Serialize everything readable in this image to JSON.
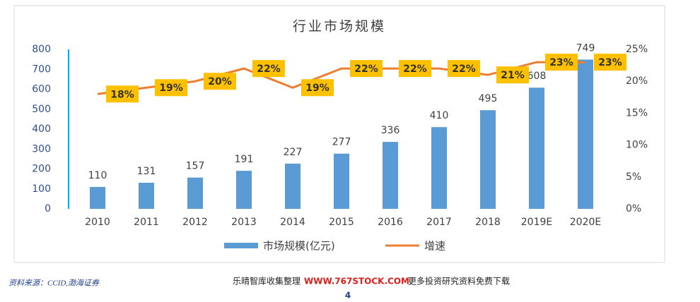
{
  "chart_data": {
    "type": "bar_line",
    "title": "行业市场规模",
    "categories": [
      "2010",
      "2011",
      "2012",
      "2013",
      "2014",
      "2015",
      "2016",
      "2017",
      "2018",
      "2019E",
      "2020E"
    ],
    "series": [
      {
        "name": "市场规模(亿元)",
        "type": "bar",
        "color": "#5b9bd5",
        "values": [
          110,
          131,
          157,
          191,
          227,
          277,
          336,
          410,
          495,
          608,
          749
        ]
      },
      {
        "name": "增速",
        "type": "line",
        "axis": "y2",
        "color": "#ed7d31",
        "values": [
          18,
          19,
          20,
          22,
          19,
          22,
          22,
          22,
          21,
          23,
          23
        ],
        "value_labels": [
          "18%",
          "19%",
          "20%",
          "22%",
          "19%",
          "22%",
          "22%",
          "22%",
          "21%",
          "23%",
          "23%"
        ]
      }
    ],
    "ylim": [
      0,
      800
    ],
    "yticks": [
      0,
      100,
      200,
      300,
      400,
      500,
      600,
      700,
      800
    ],
    "y2lim": [
      0,
      25
    ],
    "y2ticks": [
      {
        "value": 0,
        "label": "0%"
      },
      {
        "value": 5,
        "label": "5%"
      },
      {
        "value": 10,
        "label": "10%"
      },
      {
        "value": 15,
        "label": "15%"
      },
      {
        "value": 20,
        "label": "20%"
      },
      {
        "value": 25,
        "label": "25%"
      }
    ],
    "legend": "bottom"
  },
  "footer": {
    "source": "资料来源：CCID,渤海证券",
    "credit_left": "乐晴智库收集整理",
    "credit_site": "WWW.767STOCK.COM",
    "credit_right": "更多投资研究资料免费下载",
    "page": "4"
  }
}
